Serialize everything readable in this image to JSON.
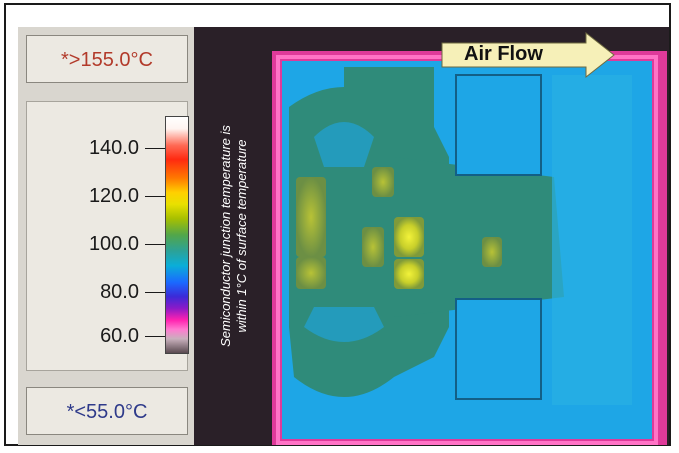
{
  "readouts": {
    "max": "*>155.0°C",
    "min": "*<55.0°C"
  },
  "scale": {
    "ticks": [
      {
        "label": "140.0"
      },
      {
        "label": "120.0"
      },
      {
        "label": "100.0"
      },
      {
        "label": "80.0"
      },
      {
        "label": "60.0"
      }
    ]
  },
  "thermal_image": {
    "annotation_line1": "Semiconductor junction temperature is",
    "annotation_line2": "within 1°C of surface temperature",
    "arrow_label": "Air Flow"
  },
  "colors": {
    "background_dark": "#2a2028",
    "board_edge": "#ff3fae",
    "cool_region": "#1ea6e6",
    "board_main": "#2f8b7a",
    "hot_spot": "#d6da2a"
  }
}
